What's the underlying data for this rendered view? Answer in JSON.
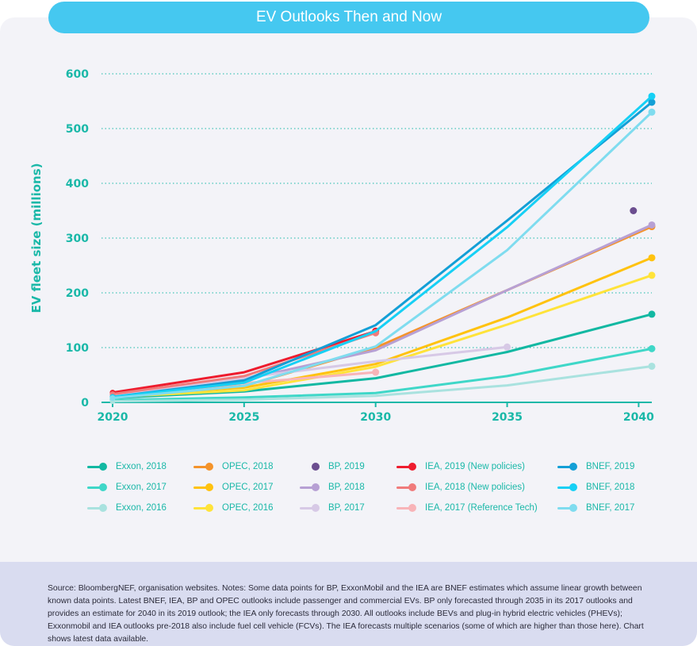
{
  "title": "EV Outlooks Then and Now",
  "footer_note": "Source: BloombergNEF, organisation websites. Notes: Some data points for BP, ExxonMobil and the IEA are BNEF estimates which assume linear growth between known data points. Latest BNEF, IEA, BP and OPEC outlooks include passenger and commercial EVs. BP only forecasted through 2035 in its 2017 outlooks and provides an estimate for 2040 in its 2019 outlook; the IEA only forecasts through 2030. All outlooks include BEVs and plug-in hybrid electric vehicles (PHEVs); Exxonmobil and IEA outlooks pre-2018 also include fuel cell vehicle (FCVs). The IEA forecasts multiple scenarios (some of which are higher than those here). Chart shows latest data available.",
  "chart_data": {
    "type": "line",
    "ylabel": "EV fleet size (millions)",
    "xlabel": "",
    "xlim": [
      2020,
      2040.5
    ],
    "ylim": [
      0,
      600
    ],
    "x_ticks": [
      2020,
      2025,
      2030,
      2035,
      2040
    ],
    "y_ticks": [
      0,
      100,
      200,
      300,
      400,
      500,
      600
    ],
    "grid": "horizontal dotted",
    "legend_placement": "bottom",
    "series": [
      {
        "name": "Exxon, 2018",
        "color": "#12b8a2",
        "points": [
          [
            2020,
            8
          ],
          [
            2025,
            20
          ],
          [
            2030,
            44
          ],
          [
            2035,
            92
          ],
          [
            2040.5,
            161
          ]
        ]
      },
      {
        "name": "Exxon, 2017",
        "color": "#3fd7c8",
        "points": [
          [
            2020,
            4
          ],
          [
            2025,
            9
          ],
          [
            2030,
            17
          ],
          [
            2035,
            48
          ],
          [
            2040.5,
            98
          ]
        ]
      },
      {
        "name": "Exxon, 2016",
        "color": "#a9e2df",
        "points": [
          [
            2020,
            2
          ],
          [
            2025,
            5
          ],
          [
            2030,
            12
          ],
          [
            2035,
            31
          ],
          [
            2040.5,
            66
          ]
        ]
      },
      {
        "name": "OPEC, 2018",
        "color": "#f4932b",
        "points": [
          [
            2020,
            14
          ],
          [
            2025,
            30
          ],
          [
            2030,
            100
          ],
          [
            2035,
            205
          ],
          [
            2040.5,
            321
          ]
        ]
      },
      {
        "name": "OPEC, 2017",
        "color": "#ffc20e",
        "points": [
          [
            2020,
            12
          ],
          [
            2025,
            27
          ],
          [
            2030,
            70
          ],
          [
            2035,
            155
          ],
          [
            2040.5,
            264
          ]
        ]
      },
      {
        "name": "OPEC, 2016",
        "color": "#ffe33a",
        "points": [
          [
            2020,
            10
          ],
          [
            2025,
            22
          ],
          [
            2030,
            65
          ],
          [
            2035,
            142
          ],
          [
            2040.5,
            232
          ]
        ]
      },
      {
        "name": "BP, 2019",
        "color": "#6b4d8f",
        "points": [
          [
            2039.8,
            350
          ]
        ],
        "markers_only": true
      },
      {
        "name": "BP, 2018",
        "color": "#b7a0d4",
        "points": [
          [
            2020,
            14
          ],
          [
            2025,
            42
          ],
          [
            2030,
            95
          ],
          [
            2035,
            205
          ],
          [
            2040.5,
            324
          ]
        ]
      },
      {
        "name": "BP, 2017",
        "color": "#d7c9e6",
        "points": [
          [
            2020,
            12
          ],
          [
            2025,
            45
          ],
          [
            2030,
            75
          ],
          [
            2035,
            101
          ]
        ]
      },
      {
        "name": "IEA, 2019 (New policies)",
        "color": "#ee1c2e",
        "points": [
          [
            2020,
            18
          ],
          [
            2025,
            55
          ],
          [
            2030,
            130
          ]
        ]
      },
      {
        "name": "IEA, 2018 (New policies)",
        "color": "#f07b7b",
        "points": [
          [
            2020,
            15
          ],
          [
            2025,
            48
          ],
          [
            2030,
            127
          ]
        ]
      },
      {
        "name": "IEA, 2017 (Reference Tech)",
        "color": "#f8b4b8",
        "points": [
          [
            2020,
            10
          ],
          [
            2025,
            35
          ],
          [
            2030,
            55
          ]
        ]
      },
      {
        "name": "BNEF, 2019",
        "color": "#139fd6",
        "points": [
          [
            2020,
            10
          ],
          [
            2025,
            40
          ],
          [
            2030,
            141
          ],
          [
            2035,
            332
          ],
          [
            2040.5,
            548
          ]
        ]
      },
      {
        "name": "BNEF, 2018",
        "color": "#16d0f5",
        "points": [
          [
            2020,
            10
          ],
          [
            2025,
            36
          ],
          [
            2030,
            130
          ],
          [
            2035,
            320
          ],
          [
            2040.5,
            559
          ]
        ]
      },
      {
        "name": "BNEF, 2017",
        "color": "#7fdcef",
        "points": [
          [
            2020,
            8
          ],
          [
            2025,
            30
          ],
          [
            2030,
            102
          ],
          [
            2035,
            278
          ],
          [
            2040.5,
            530
          ]
        ]
      }
    ]
  }
}
